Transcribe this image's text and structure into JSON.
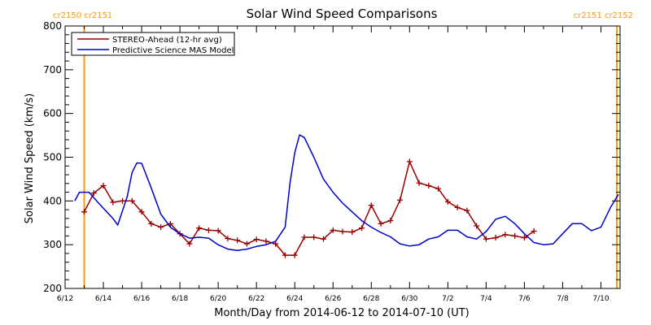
{
  "chart_data": {
    "type": "line",
    "title": "Solar Wind Speed Comparisons",
    "xlabel": "Month/Day from 2014-06-12 to 2014-07-10 (UT)",
    "ylabel": "Solar Wind Speed (km/s)",
    "xlim": [
      "2014-06-12",
      "2014-07-11"
    ],
    "ylim": [
      200,
      800
    ],
    "y_ticks": [
      200,
      300,
      400,
      500,
      600,
      700,
      800
    ],
    "y_tick_labels": [
      "200",
      "300",
      "400",
      "500",
      "600",
      "700",
      "800"
    ],
    "x_ticks": [
      "2014-06-12",
      "2014-06-14",
      "2014-06-16",
      "2014-06-18",
      "2014-06-20",
      "2014-06-22",
      "2014-06-24",
      "2014-06-26",
      "2014-06-28",
      "2014-06-30",
      "2014-07-02",
      "2014-07-04",
      "2014-07-06",
      "2014-07-08",
      "2014-07-10"
    ],
    "x_tick_labels": [
      "6/12",
      "6/14",
      "6/16",
      "6/18",
      "6/20",
      "6/22",
      "6/24",
      "6/26",
      "6/28",
      "6/30",
      "7/2",
      "7/4",
      "7/6",
      "7/8",
      "7/10"
    ],
    "legend_position": "top-left",
    "series": [
      {
        "name": "STEREO-Ahead (12-hr avg)",
        "color": "#990000",
        "marker": "plus",
        "points": [
          [
            "2014-06-13T00:00",
            375
          ],
          [
            "2014-06-13T12:00",
            418
          ],
          [
            "2014-06-14T00:00",
            435
          ],
          [
            "2014-06-14T12:00",
            397
          ],
          [
            "2014-06-15T00:00",
            400
          ],
          [
            "2014-06-15T12:00",
            400
          ],
          [
            "2014-06-16T00:00",
            375
          ],
          [
            "2014-06-16T12:00",
            348
          ],
          [
            "2014-06-17T00:00",
            340
          ],
          [
            "2014-06-17T12:00",
            348
          ],
          [
            "2014-06-18T00:00",
            325
          ],
          [
            "2014-06-18T12:00",
            302
          ],
          [
            "2014-06-19T00:00",
            338
          ],
          [
            "2014-06-19T12:00",
            333
          ],
          [
            "2014-06-20T00:00",
            332
          ],
          [
            "2014-06-20T12:00",
            314
          ],
          [
            "2014-06-21T00:00",
            310
          ],
          [
            "2014-06-21T12:00",
            302
          ],
          [
            "2014-06-22T00:00",
            312
          ],
          [
            "2014-06-22T12:00",
            308
          ],
          [
            "2014-06-23T00:00",
            302
          ],
          [
            "2014-06-23T12:00",
            276
          ],
          [
            "2014-06-24T00:00",
            276
          ],
          [
            "2014-06-24T12:00",
            317
          ],
          [
            "2014-06-25T00:00",
            317
          ],
          [
            "2014-06-25T12:00",
            313
          ],
          [
            "2014-06-26T00:00",
            333
          ],
          [
            "2014-06-26T12:00",
            330
          ],
          [
            "2014-06-27T00:00",
            329
          ],
          [
            "2014-06-27T12:00",
            338
          ],
          [
            "2014-06-28T00:00",
            390
          ],
          [
            "2014-06-28T12:00",
            348
          ],
          [
            "2014-06-29T00:00",
            355
          ],
          [
            "2014-06-29T12:00",
            402
          ],
          [
            "2014-06-30T00:00",
            490
          ],
          [
            "2014-06-30T12:00",
            441
          ],
          [
            "2014-07-01T00:00",
            435
          ],
          [
            "2014-07-01T12:00",
            428
          ],
          [
            "2014-07-02T00:00",
            398
          ],
          [
            "2014-07-02T12:00",
            385
          ],
          [
            "2014-07-03T00:00",
            378
          ],
          [
            "2014-07-03T12:00",
            343
          ],
          [
            "2014-07-04T00:00",
            313
          ],
          [
            "2014-07-04T12:00",
            316
          ],
          [
            "2014-07-05T00:00",
            323
          ],
          [
            "2014-07-05T12:00",
            320
          ],
          [
            "2014-07-06T00:00",
            316
          ],
          [
            "2014-07-06T12:00",
            331
          ]
        ]
      },
      {
        "name": "Predictive Science MAS Model",
        "color": "#0000cc",
        "marker": "none",
        "points": [
          [
            "2014-06-12T12:00",
            400
          ],
          [
            "2014-06-12T18:00",
            420
          ],
          [
            "2014-06-13T06:00",
            420
          ],
          [
            "2014-06-13T18:00",
            395
          ],
          [
            "2014-06-14T12:00",
            360
          ],
          [
            "2014-06-14T18:00",
            345
          ],
          [
            "2014-06-15T06:00",
            410
          ],
          [
            "2014-06-15T12:00",
            465
          ],
          [
            "2014-06-15T18:00",
            487
          ],
          [
            "2014-06-16T00:00",
            486
          ],
          [
            "2014-06-16T12:00",
            430
          ],
          [
            "2014-06-17T00:00",
            370
          ],
          [
            "2014-06-17T12:00",
            340
          ],
          [
            "2014-06-18T00:00",
            325
          ],
          [
            "2014-06-18T12:00",
            315
          ],
          [
            "2014-06-19T00:00",
            317
          ],
          [
            "2014-06-19T12:00",
            315
          ],
          [
            "2014-06-20T00:00",
            300
          ],
          [
            "2014-06-20T12:00",
            290
          ],
          [
            "2014-06-21T00:00",
            287
          ],
          [
            "2014-06-21T12:00",
            290
          ],
          [
            "2014-06-22T00:00",
            296
          ],
          [
            "2014-06-22T12:00",
            300
          ],
          [
            "2014-06-23T00:00",
            308
          ],
          [
            "2014-06-23T12:00",
            340
          ],
          [
            "2014-06-23T18:00",
            440
          ],
          [
            "2014-06-24T00:00",
            510
          ],
          [
            "2014-06-24T06:00",
            551
          ],
          [
            "2014-06-24T12:00",
            545
          ],
          [
            "2014-06-25T00:00",
            500
          ],
          [
            "2014-06-25T12:00",
            450
          ],
          [
            "2014-06-26T00:00",
            420
          ],
          [
            "2014-06-26T12:00",
            395
          ],
          [
            "2014-06-27T00:00",
            375
          ],
          [
            "2014-06-27T12:00",
            355
          ],
          [
            "2014-06-28T00:00",
            340
          ],
          [
            "2014-06-28T12:00",
            328
          ],
          [
            "2014-06-29T00:00",
            318
          ],
          [
            "2014-06-29T12:00",
            302
          ],
          [
            "2014-06-30T00:00",
            297
          ],
          [
            "2014-06-30T12:00",
            300
          ],
          [
            "2014-07-01T00:00",
            313
          ],
          [
            "2014-07-01T12:00",
            318
          ],
          [
            "2014-07-02T00:00",
            333
          ],
          [
            "2014-07-02T12:00",
            333
          ],
          [
            "2014-07-03T00:00",
            318
          ],
          [
            "2014-07-03T12:00",
            313
          ],
          [
            "2014-07-04T00:00",
            330
          ],
          [
            "2014-07-04T12:00",
            358
          ],
          [
            "2014-07-05T00:00",
            365
          ],
          [
            "2014-07-05T12:00",
            348
          ],
          [
            "2014-07-06T00:00",
            325
          ],
          [
            "2014-07-06T12:00",
            305
          ],
          [
            "2014-07-07T00:00",
            300
          ],
          [
            "2014-07-07T12:00",
            302
          ],
          [
            "2014-07-08T00:00",
            325
          ],
          [
            "2014-07-08T12:00",
            348
          ],
          [
            "2014-07-09T00:00",
            348
          ],
          [
            "2014-07-09T12:00",
            332
          ],
          [
            "2014-07-10T00:00",
            340
          ],
          [
            "2014-07-10T12:00",
            385
          ],
          [
            "2014-07-10T22:00",
            415
          ]
        ]
      }
    ],
    "markers": [
      {
        "date": "2014-06-13T00:00",
        "color": "#ff9900",
        "labels": [
          "cr2150",
          "cr2151"
        ],
        "label_side": "left"
      },
      {
        "date": "2014-07-10T20:00",
        "color": "#ff9900",
        "labels": [
          "cr2151",
          "cr2152"
        ],
        "label_side": "right"
      }
    ]
  }
}
